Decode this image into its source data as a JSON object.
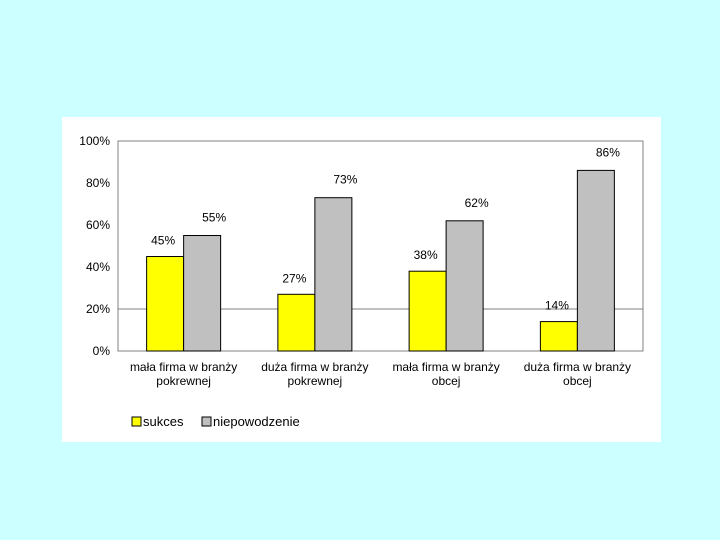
{
  "chart_data": {
    "type": "bar",
    "title": "",
    "xlabel": "",
    "ylabel": "",
    "ylim": [
      0,
      100
    ],
    "yticks": [
      0,
      20,
      40,
      60,
      80,
      100
    ],
    "ytick_labels": [
      "0%",
      "20%",
      "40%",
      "60%",
      "80%",
      "100%"
    ],
    "categories": [
      [
        "mała firma w branży",
        "pokrewnej"
      ],
      [
        "duża firma w branży",
        "pokrewnej"
      ],
      [
        "mała firma w branży",
        "obcej"
      ],
      [
        "duża firma w branży",
        "obcej"
      ]
    ],
    "series": [
      {
        "name": "sukces",
        "color": "#ffff00",
        "values": [
          45,
          27,
          38,
          14
        ],
        "labels": [
          "45%",
          "27%",
          "38%",
          "14%"
        ]
      },
      {
        "name": "niepowodzenie",
        "color": "#c0c0c0",
        "values": [
          55,
          73,
          62,
          86
        ],
        "labels": [
          "55%",
          "73%",
          "62%",
          "86%"
        ]
      }
    ],
    "reference_line": 20,
    "grid": false,
    "legend_position": "bottom-left"
  }
}
